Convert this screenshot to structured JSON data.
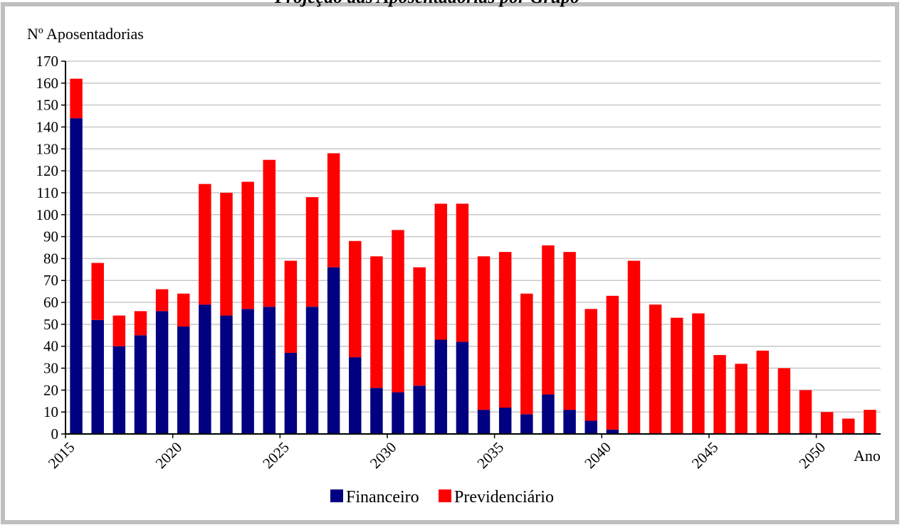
{
  "page": {
    "header_text": "Projeção das Aposentadorias por Grupo"
  },
  "colors": {
    "frame": "#bfbfbf",
    "grid": "#c8c8c8",
    "axis": "#000000"
  },
  "chart_data": {
    "type": "bar",
    "stacked": true,
    "title": "",
    "ylabel": "Nº Aposentadorias",
    "xlabel": "Ano",
    "ylim": [
      0,
      170
    ],
    "y_ticks": [
      0,
      10,
      20,
      30,
      40,
      50,
      60,
      70,
      80,
      90,
      100,
      110,
      120,
      130,
      140,
      150,
      160,
      170
    ],
    "x_tick_labels": [
      "2015",
      "2020",
      "2025",
      "2030",
      "2035",
      "2040",
      "2045",
      "2050"
    ],
    "grid": "horizontal",
    "legend_position": "bottom-center",
    "categories": [
      "2015",
      "2016",
      "2017",
      "2018",
      "2019",
      "2020",
      "2021",
      "2022",
      "2023",
      "2024",
      "2025",
      "2026",
      "2027",
      "2028",
      "2029",
      "2030",
      "2031",
      "2032",
      "2033",
      "2034",
      "2035",
      "2036",
      "2037",
      "2038",
      "2039",
      "2040",
      "2041",
      "2042",
      "2043",
      "2044",
      "2045",
      "2046",
      "2047",
      "2048",
      "2049",
      "2050",
      "2051",
      "2052"
    ],
    "series": [
      {
        "name": "Financeiro",
        "color": "#000080",
        "values": [
          144,
          52,
          40,
          45,
          56,
          49,
          59,
          54,
          57,
          58,
          37,
          58,
          76,
          35,
          21,
          19,
          22,
          43,
          42,
          11,
          12,
          9,
          18,
          11,
          6,
          2,
          0,
          0,
          0,
          0,
          0,
          0,
          0,
          0,
          0,
          0,
          0,
          0
        ]
      },
      {
        "name": "Previdenciário",
        "color": "#ff0000",
        "values": [
          18,
          26,
          14,
          11,
          10,
          15,
          55,
          56,
          58,
          67,
          42,
          50,
          52,
          53,
          60,
          74,
          54,
          62,
          63,
          70,
          71,
          55,
          68,
          72,
          51,
          61,
          79,
          59,
          53,
          55,
          36,
          32,
          38,
          30,
          20,
          10,
          7,
          11
        ]
      }
    ]
  }
}
